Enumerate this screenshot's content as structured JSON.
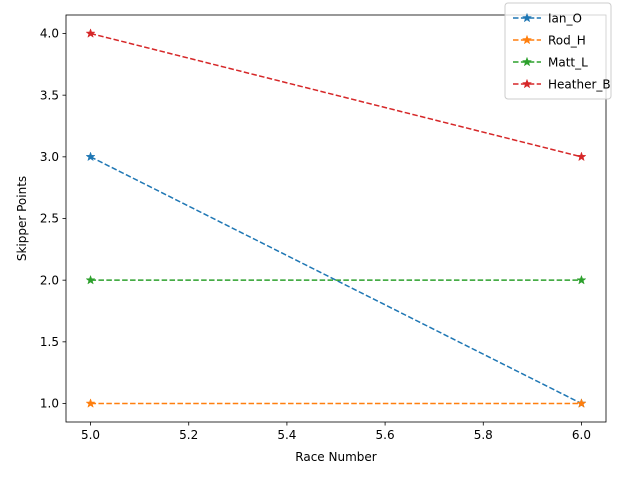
{
  "chart_data": {
    "type": "line",
    "title": "",
    "xlabel": "Race Number",
    "ylabel": "Skipper Points",
    "x": [
      5,
      6
    ],
    "xlim": [
      4.95,
      6.05
    ],
    "ylim": [
      0.85,
      4.15
    ],
    "xticks": [
      5.0,
      5.2,
      5.4,
      5.6,
      5.8,
      6.0
    ],
    "xtick_labels": [
      "5.0",
      "5.2",
      "5.4",
      "5.6",
      "5.8",
      "6.0"
    ],
    "yticks": [
      1.0,
      1.5,
      2.0,
      2.5,
      3.0,
      3.5,
      4.0
    ],
    "ytick_labels": [
      "1.0",
      "1.5",
      "2.0",
      "2.5",
      "3.0",
      "3.5",
      "4.0"
    ],
    "grid": false,
    "legend_position": "top-right",
    "line_style": "dashed",
    "marker": "star",
    "series": [
      {
        "name": "Ian_O",
        "color": "#1f77b4",
        "values": [
          3,
          1
        ]
      },
      {
        "name": "Rod_H",
        "color": "#ff7f0e",
        "values": [
          1,
          1
        ]
      },
      {
        "name": "Matt_L",
        "color": "#2ca02c",
        "values": [
          2,
          2
        ]
      },
      {
        "name": "Heather_B",
        "color": "#d62728",
        "values": [
          4,
          3
        ]
      }
    ]
  }
}
